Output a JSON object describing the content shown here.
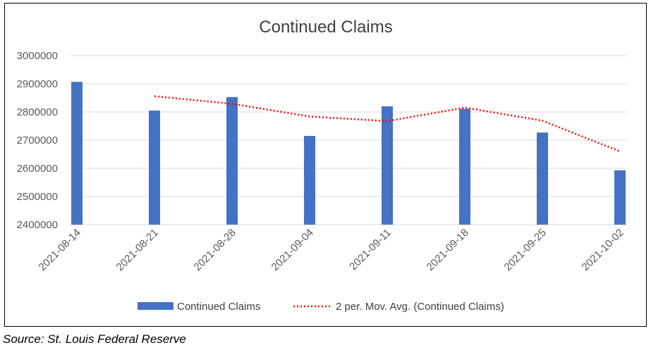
{
  "chart_data": {
    "type": "bar",
    "title": "Continued Claims",
    "categories": [
      "2021-08-14",
      "2021-08-21",
      "2021-08-28",
      "2021-09-04",
      "2021-09-11",
      "2021-09-18",
      "2021-09-25",
      "2021-10-02"
    ],
    "series": [
      {
        "name": "Continued Claims",
        "type": "bar",
        "color": "#4472C4",
        "values": [
          2907000,
          2805000,
          2853000,
          2715000,
          2820000,
          2811000,
          2727000,
          2593000
        ]
      },
      {
        "name": "2 per. Mov. Avg. (Continued Claims)",
        "type": "line",
        "style": "dotted",
        "color": "#FF0000",
        "values": [
          null,
          2856000,
          2829000,
          2784000,
          2767500,
          2815500,
          2769000,
          2660000
        ]
      }
    ],
    "ylim": [
      2400000,
      3000000
    ],
    "yticks": [
      "2400000",
      "2500000",
      "2600000",
      "2700000",
      "2800000",
      "2900000",
      "3000000"
    ],
    "grid": true,
    "legend_position": "bottom"
  },
  "source_note": "Source:  St. Louis Federal Reserve"
}
